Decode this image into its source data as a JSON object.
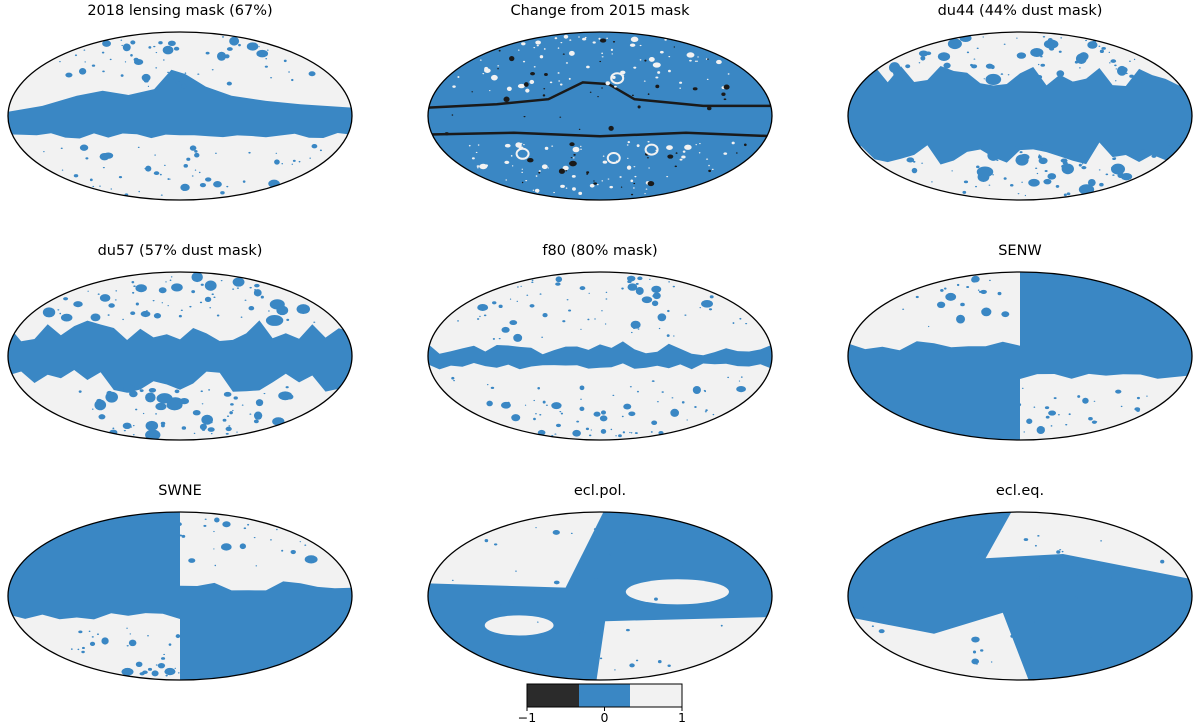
{
  "panels": [
    {
      "title": "2018 lensing mask (67%)",
      "kind": "lens2018"
    },
    {
      "title": "Change from 2015 mask",
      "kind": "change"
    },
    {
      "title": "du44 (44% dust mask)",
      "kind": "du44"
    },
    {
      "title": "du57 (57% dust mask)",
      "kind": "du57"
    },
    {
      "title": "f80 (80% mask)",
      "kind": "f80"
    },
    {
      "title": "SENW",
      "kind": "senw"
    },
    {
      "title": "SWNE",
      "kind": "swne"
    },
    {
      "title": "ecl.pol.",
      "kind": "eclpol"
    },
    {
      "title": "ecl.eq.",
      "kind": "ecleq"
    }
  ],
  "colorbar": {
    "ticks": [
      "−1",
      "0",
      "1"
    ],
    "segments": [
      {
        "value": -1,
        "color": "#2b2b2b"
      },
      {
        "value": 0,
        "color": "#3a87c4"
      },
      {
        "value": 1,
        "color": "#f2f2f2"
      }
    ]
  },
  "colors": {
    "masked": "#3a87c4",
    "unmasked": "#f2f2f2",
    "removed": "#1a1a1a",
    "outline": "#000000"
  }
}
